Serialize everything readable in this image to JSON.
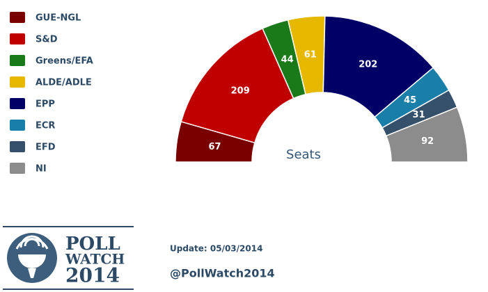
{
  "chart_data": {
    "type": "halfdonut",
    "title": "Seats",
    "categories": [
      "GUE-NGL",
      "S&D",
      "Greens/EFA",
      "ALDE/ADLE",
      "EPP",
      "ECR",
      "EFD",
      "NI"
    ],
    "values": [
      67,
      209,
      44,
      61,
      202,
      45,
      31,
      92
    ],
    "colors": [
      "#7a0000",
      "#c00000",
      "#1a7a1a",
      "#e6b800",
      "#000066",
      "#1a7fa8",
      "#35506b",
      "#8c8c8c"
    ],
    "legend": "left"
  },
  "footer": {
    "update": "Update: 05/03/2014",
    "handle": "@PollWatch2014",
    "logo": [
      "POLL",
      "WATCH",
      "2014"
    ]
  }
}
